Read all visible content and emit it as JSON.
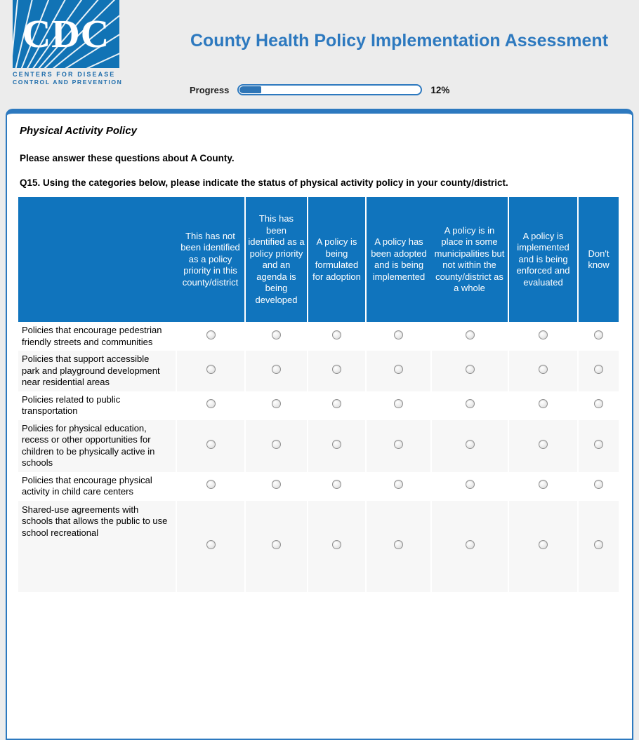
{
  "colors": {
    "accent": "#2d79bf",
    "header_blue": "#1074bd",
    "logo_blue": "#1173b5",
    "stripe": "#f7f7f7",
    "progress_fill": "#2e75b6",
    "page_bg": "#ececec"
  },
  "logo": {
    "acronym": "CDC",
    "line1": "CENTERS FOR DISEASE",
    "line2": "CONTROL AND PREVENTION"
  },
  "header": {
    "title": "County Health Policy Implementation Assessment"
  },
  "progress": {
    "label": "Progress",
    "percent": 12,
    "percent_text": "12%"
  },
  "panel": {
    "section_title": "Physical Activity Policy",
    "intro": "Please answer these questions about A County.",
    "question_number": "Q15.",
    "question_text": "Using the categories below, please indicate the status of physical activity policy in your county/district."
  },
  "table": {
    "columns": [
      "This has not been identified as a policy priority in this county/district",
      "This has been identified as a policy priority and an agenda is being developed",
      "A policy is being formulated for adoption",
      "A policy has been adopted and is being implemented",
      "A policy is in place in some municipalities but not within the county/district as a whole",
      "A policy is implemented and is being enforced and evaluated",
      "Don't know"
    ],
    "rows": [
      {
        "label": "Policies that encourage pedestrian friendly streets and communities"
      },
      {
        "label": "Policies that support accessible park and playground development near residential areas"
      },
      {
        "label": "Policies related to public transportation"
      },
      {
        "label": "Policies for physical education, recess or other opportunities for children to be physically active in schools"
      },
      {
        "label": "Policies that encourage physical activity in child care centers"
      },
      {
        "label": "Shared-use agreements with schools that allows the public to use school recreational"
      }
    ]
  }
}
